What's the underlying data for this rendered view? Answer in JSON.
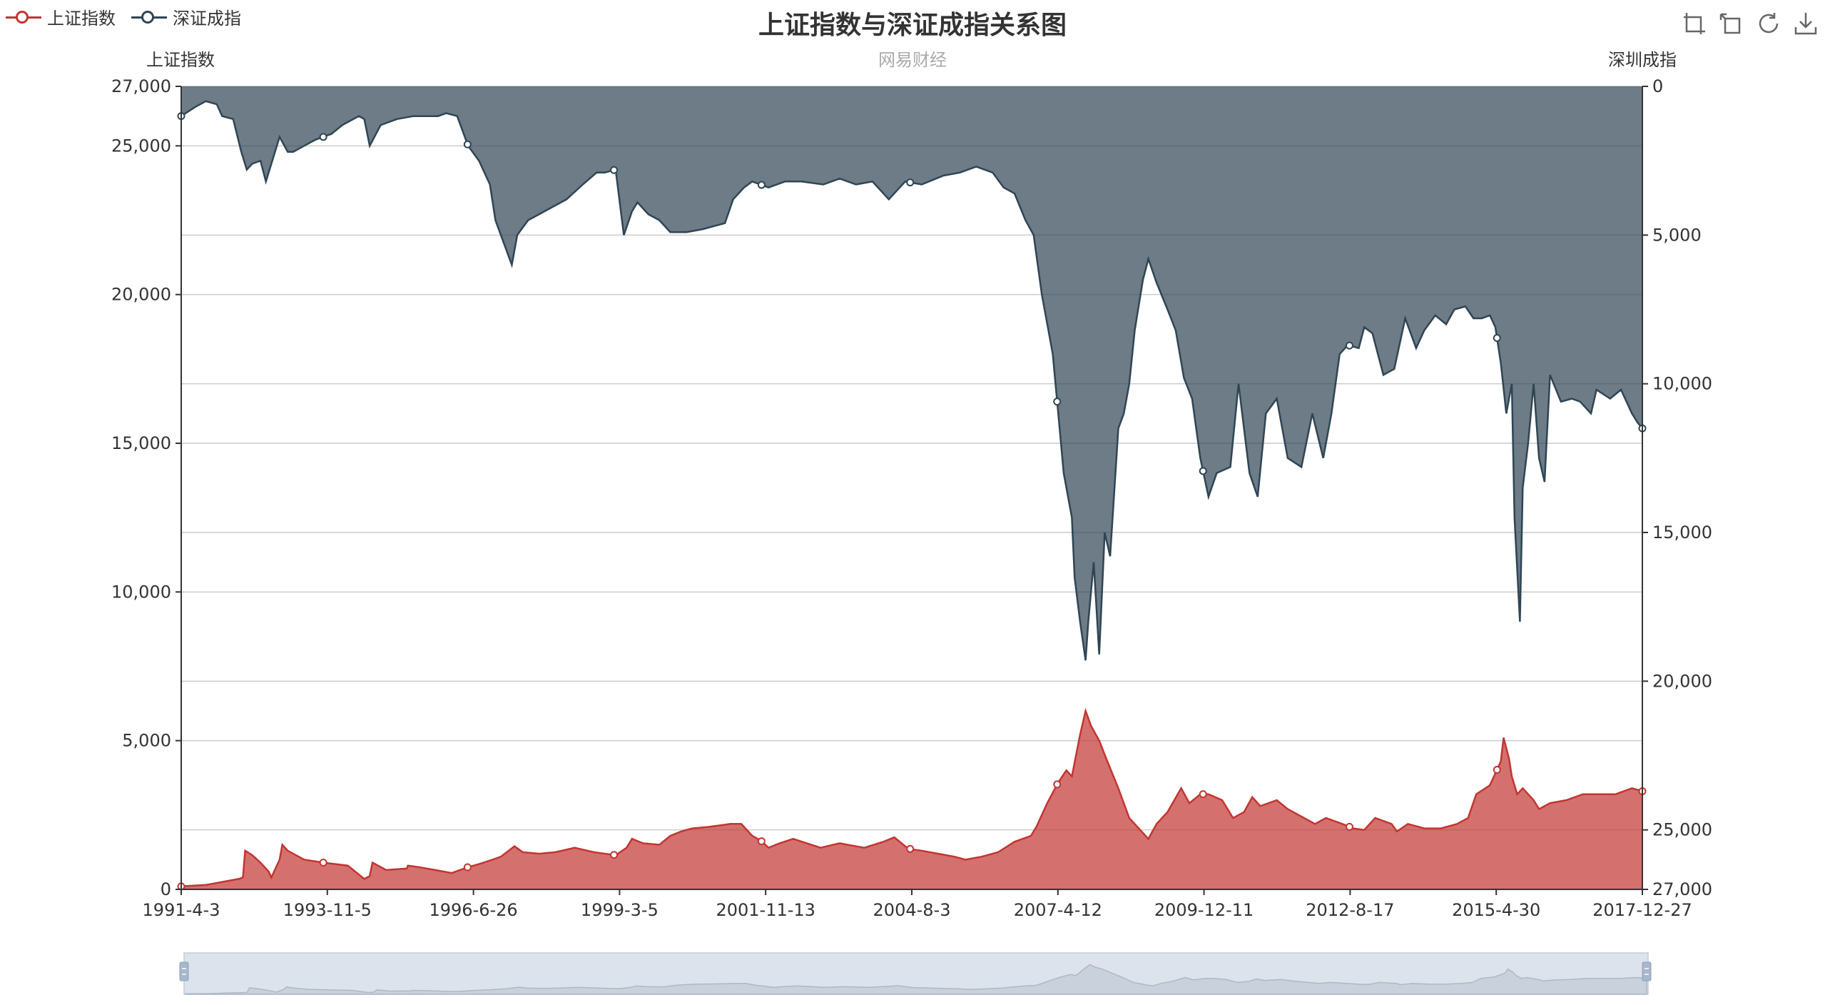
{
  "legend": {
    "items": [
      {
        "label": "上证指数",
        "color": "#c23531"
      },
      {
        "label": "深证成指",
        "color": "#2f4554"
      }
    ]
  },
  "title": "上证指数与深证成指关系图",
  "subtitle": "网易财经",
  "toolbox": [
    {
      "name": "zoom-icon"
    },
    {
      "name": "zoom-back-icon"
    },
    {
      "name": "restore-icon"
    },
    {
      "name": "save-image-icon"
    }
  ],
  "chart_data": {
    "type": "area",
    "title": "上证指数与深证成指关系图",
    "subtitle": "网易财经",
    "x_tick_labels": [
      "1991-4-3",
      "1993-11-5",
      "1996-6-26",
      "1999-3-5",
      "2001-11-13",
      "2004-8-3",
      "2007-4-12",
      "2009-12-11",
      "2012-8-17",
      "2015-4-30",
      "2017-12-27"
    ],
    "x_range": [
      1991.25,
      2017.99
    ],
    "y_left": {
      "name": "上证指数",
      "range": [
        0,
        27000
      ],
      "ticks": [
        0,
        5000,
        10000,
        15000,
        20000,
        25000,
        27000
      ]
    },
    "y_right": {
      "name": "深圳成指",
      "range": [
        0,
        27000
      ],
      "inverse": true,
      "ticks": [
        0,
        5000,
        10000,
        15000,
        20000,
        25000,
        27000
      ]
    },
    "grid": true,
    "legend_position": "top-left",
    "dataZoom": {
      "type": "slider",
      "position": "bottom",
      "start": 0,
      "end": 100
    },
    "series": [
      {
        "name": "上证指数",
        "axis": "left",
        "color": "#c23531",
        "points": [
          [
            1991.25,
            100
          ],
          [
            1991.7,
            150
          ],
          [
            1992.0,
            250
          ],
          [
            1992.3,
            350
          ],
          [
            1992.38,
            400
          ],
          [
            1992.42,
            1300
          ],
          [
            1992.55,
            1150
          ],
          [
            1992.7,
            900
          ],
          [
            1992.85,
            600
          ],
          [
            1992.9,
            400
          ],
          [
            1993.05,
            1000
          ],
          [
            1993.1,
            1500
          ],
          [
            1993.2,
            1300
          ],
          [
            1993.5,
            1000
          ],
          [
            1993.85,
            900
          ],
          [
            1994.3,
            800
          ],
          [
            1994.6,
            350
          ],
          [
            1994.7,
            450
          ],
          [
            1994.75,
            900
          ],
          [
            1995.0,
            650
          ],
          [
            1995.38,
            700
          ],
          [
            1995.4,
            800
          ],
          [
            1995.6,
            750
          ],
          [
            1995.9,
            650
          ],
          [
            1996.2,
            550
          ],
          [
            1996.5,
            750
          ],
          [
            1996.7,
            850
          ],
          [
            1996.95,
            1000
          ],
          [
            1997.1,
            1100
          ],
          [
            1997.35,
            1450
          ],
          [
            1997.5,
            1250
          ],
          [
            1997.8,
            1200
          ],
          [
            1998.1,
            1250
          ],
          [
            1998.45,
            1400
          ],
          [
            1998.8,
            1250
          ],
          [
            1999.0,
            1200
          ],
          [
            1999.2,
            1150
          ],
          [
            1999.4,
            1400
          ],
          [
            1999.5,
            1700
          ],
          [
            1999.7,
            1550
          ],
          [
            2000.0,
            1500
          ],
          [
            2000.2,
            1800
          ],
          [
            2000.4,
            1950
          ],
          [
            2000.6,
            2050
          ],
          [
            2000.9,
            2100
          ],
          [
            2001.3,
            2200
          ],
          [
            2001.5,
            2200
          ],
          [
            2001.7,
            1800
          ],
          [
            2001.85,
            1650
          ],
          [
            2002.0,
            1400
          ],
          [
            2002.2,
            1550
          ],
          [
            2002.45,
            1700
          ],
          [
            2002.7,
            1550
          ],
          [
            2002.95,
            1400
          ],
          [
            2003.3,
            1550
          ],
          [
            2003.75,
            1400
          ],
          [
            2004.1,
            1600
          ],
          [
            2004.3,
            1750
          ],
          [
            2004.5,
            1450
          ],
          [
            2004.6,
            1350
          ],
          [
            2004.8,
            1300
          ],
          [
            2005.1,
            1200
          ],
          [
            2005.4,
            1100
          ],
          [
            2005.6,
            1000
          ],
          [
            2005.9,
            1100
          ],
          [
            2006.2,
            1250
          ],
          [
            2006.5,
            1600
          ],
          [
            2006.8,
            1800
          ],
          [
            2006.9,
            2100
          ],
          [
            2007.1,
            2900
          ],
          [
            2007.3,
            3600
          ],
          [
            2007.45,
            4000
          ],
          [
            2007.55,
            3800
          ],
          [
            2007.7,
            5200
          ],
          [
            2007.8,
            6000
          ],
          [
            2007.9,
            5500
          ],
          [
            2008.05,
            5000
          ],
          [
            2008.2,
            4300
          ],
          [
            2008.4,
            3400
          ],
          [
            2008.6,
            2400
          ],
          [
            2008.8,
            2000
          ],
          [
            2008.95,
            1700
          ],
          [
            2009.1,
            2200
          ],
          [
            2009.3,
            2600
          ],
          [
            2009.55,
            3400
          ],
          [
            2009.7,
            2900
          ],
          [
            2009.9,
            3200
          ],
          [
            2010.05,
            3200
          ],
          [
            2010.3,
            3000
          ],
          [
            2010.5,
            2400
          ],
          [
            2010.7,
            2600
          ],
          [
            2010.85,
            3100
          ],
          [
            2011.0,
            2800
          ],
          [
            2011.3,
            3000
          ],
          [
            2011.5,
            2700
          ],
          [
            2011.8,
            2400
          ],
          [
            2012.0,
            2200
          ],
          [
            2012.2,
            2400
          ],
          [
            2012.5,
            2200
          ],
          [
            2012.7,
            2050
          ],
          [
            2012.9,
            2000
          ],
          [
            2013.1,
            2400
          ],
          [
            2013.4,
            2200
          ],
          [
            2013.5,
            1950
          ],
          [
            2013.7,
            2200
          ],
          [
            2014.0,
            2050
          ],
          [
            2014.3,
            2050
          ],
          [
            2014.6,
            2200
          ],
          [
            2014.8,
            2400
          ],
          [
            2014.95,
            3200
          ],
          [
            2015.2,
            3500
          ],
          [
            2015.4,
            4300
          ],
          [
            2015.45,
            5100
          ],
          [
            2015.55,
            4400
          ],
          [
            2015.6,
            3800
          ],
          [
            2015.7,
            3200
          ],
          [
            2015.8,
            3400
          ],
          [
            2016.0,
            3000
          ],
          [
            2016.1,
            2700
          ],
          [
            2016.3,
            2900
          ],
          [
            2016.6,
            3000
          ],
          [
            2016.9,
            3200
          ],
          [
            2017.2,
            3200
          ],
          [
            2017.5,
            3200
          ],
          [
            2017.8,
            3400
          ],
          [
            2017.99,
            3300
          ]
        ]
      },
      {
        "name": "深证成指",
        "axis": "right",
        "color": "#2f4554",
        "points": [
          [
            1991.25,
            1000
          ],
          [
            1991.5,
            700
          ],
          [
            1991.7,
            500
          ],
          [
            1991.9,
            600
          ],
          [
            1992.0,
            1000
          ],
          [
            1992.2,
            1100
          ],
          [
            1992.35,
            2200
          ],
          [
            1992.45,
            2800
          ],
          [
            1992.55,
            2600
          ],
          [
            1992.7,
            2500
          ],
          [
            1992.8,
            3200
          ],
          [
            1992.9,
            2600
          ],
          [
            1993.05,
            1700
          ],
          [
            1993.2,
            2200
          ],
          [
            1993.3,
            2200
          ],
          [
            1993.5,
            2000
          ],
          [
            1993.7,
            1800
          ],
          [
            1994.0,
            1600
          ],
          [
            1994.2,
            1300
          ],
          [
            1994.5,
            1000
          ],
          [
            1994.6,
            1100
          ],
          [
            1994.7,
            2000
          ],
          [
            1994.9,
            1300
          ],
          [
            1995.2,
            1100
          ],
          [
            1995.5,
            1000
          ],
          [
            1995.7,
            1000
          ],
          [
            1995.95,
            1000
          ],
          [
            1996.1,
            900
          ],
          [
            1996.3,
            1000
          ],
          [
            1996.5,
            2000
          ],
          [
            1996.7,
            2500
          ],
          [
            1996.9,
            3300
          ],
          [
            1997.0,
            4500
          ],
          [
            1997.2,
            5500
          ],
          [
            1997.3,
            6000
          ],
          [
            1997.4,
            5000
          ],
          [
            1997.6,
            4500
          ],
          [
            1997.9,
            4200
          ],
          [
            1998.3,
            3800
          ],
          [
            1998.6,
            3300
          ],
          [
            1998.85,
            2900
          ],
          [
            1999.0,
            2900
          ],
          [
            1999.2,
            2800
          ],
          [
            1999.35,
            5000
          ],
          [
            1999.5,
            4200
          ],
          [
            1999.6,
            3900
          ],
          [
            1999.8,
            4300
          ],
          [
            2000.0,
            4500
          ],
          [
            2000.2,
            4900
          ],
          [
            2000.5,
            4900
          ],
          [
            2000.8,
            4800
          ],
          [
            2001.0,
            4700
          ],
          [
            2001.2,
            4600
          ],
          [
            2001.35,
            3800
          ],
          [
            2001.55,
            3400
          ],
          [
            2001.7,
            3200
          ],
          [
            2002.0,
            3400
          ],
          [
            2002.3,
            3200
          ],
          [
            2002.6,
            3200
          ],
          [
            2003.0,
            3300
          ],
          [
            2003.3,
            3100
          ],
          [
            2003.6,
            3300
          ],
          [
            2003.9,
            3200
          ],
          [
            2004.2,
            3800
          ],
          [
            2004.5,
            3200
          ],
          [
            2004.8,
            3300
          ],
          [
            2005.2,
            3000
          ],
          [
            2005.5,
            2900
          ],
          [
            2005.8,
            2700
          ],
          [
            2006.1,
            2900
          ],
          [
            2006.3,
            3400
          ],
          [
            2006.5,
            3600
          ],
          [
            2006.7,
            4500
          ],
          [
            2006.85,
            5000
          ],
          [
            2007.0,
            7000
          ],
          [
            2007.2,
            9000
          ],
          [
            2007.3,
            11000
          ],
          [
            2007.4,
            13000
          ],
          [
            2007.55,
            14500
          ],
          [
            2007.6,
            16500
          ],
          [
            2007.7,
            18000
          ],
          [
            2007.8,
            19300
          ],
          [
            2007.85,
            18000
          ],
          [
            2007.95,
            16000
          ],
          [
            2008.05,
            19100
          ],
          [
            2008.15,
            15000
          ],
          [
            2008.25,
            15800
          ],
          [
            2008.4,
            11500
          ],
          [
            2008.5,
            11000
          ],
          [
            2008.6,
            10000
          ],
          [
            2008.7,
            8200
          ],
          [
            2008.85,
            6500
          ],
          [
            2008.95,
            5800
          ],
          [
            2009.1,
            6600
          ],
          [
            2009.3,
            7500
          ],
          [
            2009.45,
            8200
          ],
          [
            2009.6,
            9800
          ],
          [
            2009.75,
            10500
          ],
          [
            2009.9,
            12500
          ],
          [
            2010.05,
            13800
          ],
          [
            2010.2,
            13000
          ],
          [
            2010.45,
            12800
          ],
          [
            2010.6,
            10000
          ],
          [
            2010.8,
            13000
          ],
          [
            2010.95,
            13800
          ],
          [
            2011.1,
            11000
          ],
          [
            2011.3,
            10500
          ],
          [
            2011.5,
            12500
          ],
          [
            2011.75,
            12800
          ],
          [
            2011.95,
            11000
          ],
          [
            2012.15,
            12500
          ],
          [
            2012.3,
            11000
          ],
          [
            2012.45,
            9000
          ],
          [
            2012.6,
            8700
          ],
          [
            2012.8,
            8800
          ],
          [
            2012.9,
            8100
          ],
          [
            2013.05,
            8300
          ],
          [
            2013.25,
            9700
          ],
          [
            2013.45,
            9500
          ],
          [
            2013.65,
            7800
          ],
          [
            2013.85,
            8800
          ],
          [
            2014.0,
            8200
          ],
          [
            2014.2,
            7700
          ],
          [
            2014.4,
            8000
          ],
          [
            2014.55,
            7500
          ],
          [
            2014.75,
            7400
          ],
          [
            2014.9,
            7800
          ],
          [
            2015.05,
            7800
          ],
          [
            2015.2,
            7700
          ],
          [
            2015.3,
            8100
          ],
          [
            2015.4,
            9300
          ],
          [
            2015.5,
            11000
          ],
          [
            2015.6,
            10000
          ],
          [
            2015.65,
            14500
          ],
          [
            2015.75,
            18000
          ],
          [
            2015.8,
            13500
          ],
          [
            2015.9,
            12000
          ],
          [
            2016.0,
            10000
          ],
          [
            2016.1,
            12500
          ],
          [
            2016.2,
            13300
          ],
          [
            2016.3,
            9700
          ],
          [
            2016.5,
            10600
          ],
          [
            2016.7,
            10500
          ],
          [
            2016.85,
            10600
          ],
          [
            2017.05,
            11000
          ],
          [
            2017.15,
            10200
          ],
          [
            2017.4,
            10500
          ],
          [
            2017.6,
            10200
          ],
          [
            2017.8,
            11000
          ],
          [
            2017.9,
            11300
          ],
          [
            2017.99,
            11500
          ]
        ]
      }
    ]
  }
}
